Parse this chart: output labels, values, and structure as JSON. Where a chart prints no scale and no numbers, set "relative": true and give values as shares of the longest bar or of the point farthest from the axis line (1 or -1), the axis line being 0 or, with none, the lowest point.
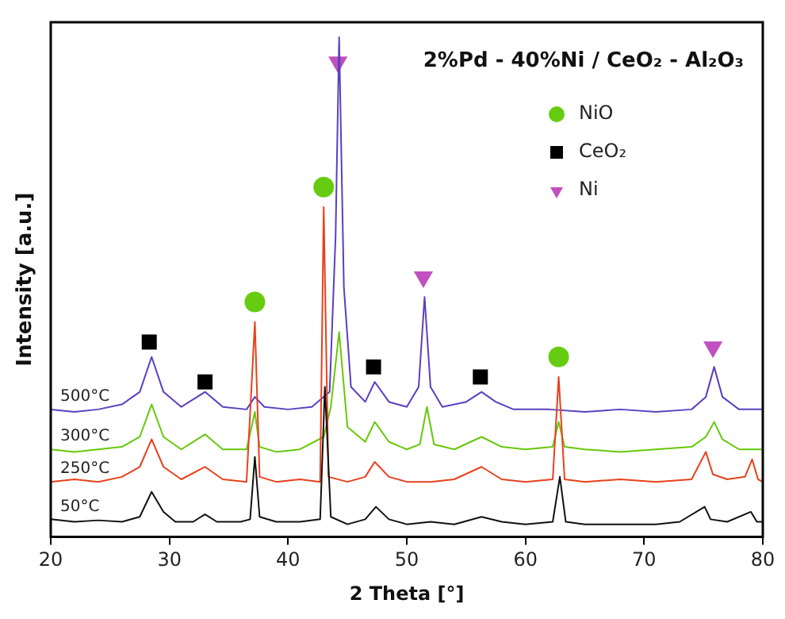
{
  "chart_data": {
    "type": "line",
    "title": "2%Pd - 40%Ni / CeO₂ - Al₂O₃",
    "xlabel": "2 Theta [°]",
    "ylabel": "Intensity [a.u.]",
    "relative": true,
    "xlim": [
      20,
      80
    ],
    "xticks": [
      20,
      30,
      40,
      50,
      60,
      70,
      80
    ],
    "grid": false,
    "legend": "top right",
    "series": [
      {
        "name": "50°C",
        "type": "line",
        "color": "#111111",
        "x": [
          20,
          22,
          24,
          26,
          27.5,
          28.5,
          29.5,
          30.5,
          32,
          33,
          34,
          36,
          36.8,
          37.2,
          37.6,
          39,
          41,
          42.7,
          43.1,
          43.6,
          45,
          46.5,
          47.4,
          48.5,
          50,
          52,
          54,
          56.3,
          58,
          60,
          62.3,
          62.9,
          63.4,
          65,
          68,
          71,
          73,
          75.1,
          75.6,
          77,
          79,
          79.5,
          80
        ],
        "values": [
          0.035,
          0.03,
          0.033,
          0.03,
          0.04,
          0.09,
          0.05,
          0.03,
          0.03,
          0.045,
          0.03,
          0.03,
          0.035,
          0.16,
          0.04,
          0.03,
          0.03,
          0.035,
          0.3,
          0.04,
          0.025,
          0.035,
          0.06,
          0.035,
          0.025,
          0.03,
          0.025,
          0.04,
          0.03,
          0.025,
          0.03,
          0.12,
          0.03,
          0.025,
          0.025,
          0.025,
          0.03,
          0.06,
          0.035,
          0.03,
          0.05,
          0.03,
          0.03
        ]
      },
      {
        "name": "250°C",
        "type": "line",
        "color": "#e8401c",
        "x": [
          20,
          22,
          24,
          26,
          27.5,
          28.5,
          29.5,
          31,
          33,
          34.5,
          36.5,
          37.2,
          37.6,
          39,
          41,
          42.7,
          43,
          43.4,
          45,
          46.5,
          47.3,
          48.5,
          50,
          52,
          54,
          56.3,
          58,
          60,
          62.3,
          62.8,
          63.3,
          65,
          68,
          71,
          74,
          75.2,
          75.8,
          77,
          78.5,
          79.1,
          79.6,
          80
        ],
        "values": [
          0.11,
          0.115,
          0.11,
          0.12,
          0.14,
          0.195,
          0.14,
          0.115,
          0.14,
          0.115,
          0.11,
          0.43,
          0.12,
          0.11,
          0.115,
          0.11,
          0.66,
          0.12,
          0.11,
          0.12,
          0.15,
          0.12,
          0.11,
          0.11,
          0.115,
          0.14,
          0.115,
          0.11,
          0.115,
          0.32,
          0.115,
          0.11,
          0.115,
          0.11,
          0.115,
          0.17,
          0.125,
          0.115,
          0.12,
          0.155,
          0.115,
          0.11
        ]
      },
      {
        "name": "300°C",
        "type": "line",
        "color": "#66c80a",
        "x": [
          20,
          22,
          24,
          26,
          27.5,
          28.5,
          29.5,
          31,
          33,
          34.5,
          36.5,
          37.2,
          37.6,
          39,
          41,
          43,
          43.6,
          44.3,
          45,
          46.5,
          47.3,
          48.5,
          50,
          51.1,
          51.7,
          52.3,
          54,
          56.3,
          58,
          60,
          62.3,
          62.8,
          63.3,
          65,
          68,
          71,
          74,
          75.2,
          75.9,
          76.6,
          78,
          80
        ],
        "values": [
          0.175,
          0.17,
          0.175,
          0.18,
          0.2,
          0.265,
          0.2,
          0.175,
          0.205,
          0.175,
          0.175,
          0.25,
          0.18,
          0.17,
          0.175,
          0.2,
          0.26,
          0.41,
          0.22,
          0.19,
          0.23,
          0.19,
          0.175,
          0.185,
          0.26,
          0.185,
          0.175,
          0.2,
          0.18,
          0.175,
          0.18,
          0.23,
          0.18,
          0.175,
          0.17,
          0.175,
          0.18,
          0.2,
          0.23,
          0.195,
          0.175,
          0.175
        ]
      },
      {
        "name": "500°C",
        "type": "line",
        "color": "#5a3fc0",
        "x": [
          20,
          22,
          24,
          26,
          27.5,
          28.5,
          29.5,
          31,
          33,
          34.5,
          36.5,
          37.2,
          38,
          40,
          42,
          43.5,
          44,
          44.3,
          44.7,
          45.3,
          46.5,
          47.3,
          48.5,
          50,
          51,
          51.5,
          52,
          53,
          55,
          56.3,
          57.5,
          59,
          62,
          65,
          68,
          71,
          74,
          75.2,
          75.9,
          76.6,
          78,
          80
        ],
        "values": [
          0.255,
          0.25,
          0.255,
          0.265,
          0.29,
          0.36,
          0.29,
          0.26,
          0.29,
          0.26,
          0.255,
          0.28,
          0.26,
          0.255,
          0.26,
          0.29,
          0.6,
          1,
          0.5,
          0.3,
          0.27,
          0.31,
          0.27,
          0.26,
          0.3,
          0.48,
          0.3,
          0.26,
          0.27,
          0.29,
          0.27,
          0.255,
          0.255,
          0.25,
          0.255,
          0.25,
          0.255,
          0.28,
          0.34,
          0.28,
          0.255,
          0.255
        ]
      },
      {
        "name": "NiO",
        "type": "scatter",
        "marker": "circle",
        "color": "#66cc11",
        "x": [
          37.2,
          43,
          62.8
        ],
        "values": [
          0.47,
          0.7,
          0.36
        ]
      },
      {
        "name": "CeO₂",
        "type": "scatter",
        "marker": "square",
        "color": "#000000",
        "x": [
          28.3,
          33,
          47.2,
          56.2
        ],
        "values": [
          0.39,
          0.31,
          0.34,
          0.32
        ]
      },
      {
        "name": "Ni",
        "type": "scatter",
        "marker": "triangle",
        "color": "#c050c0",
        "x": [
          44.2,
          51.4,
          75.8
        ],
        "values": [
          0.95,
          0.52,
          0.38
        ]
      }
    ]
  }
}
